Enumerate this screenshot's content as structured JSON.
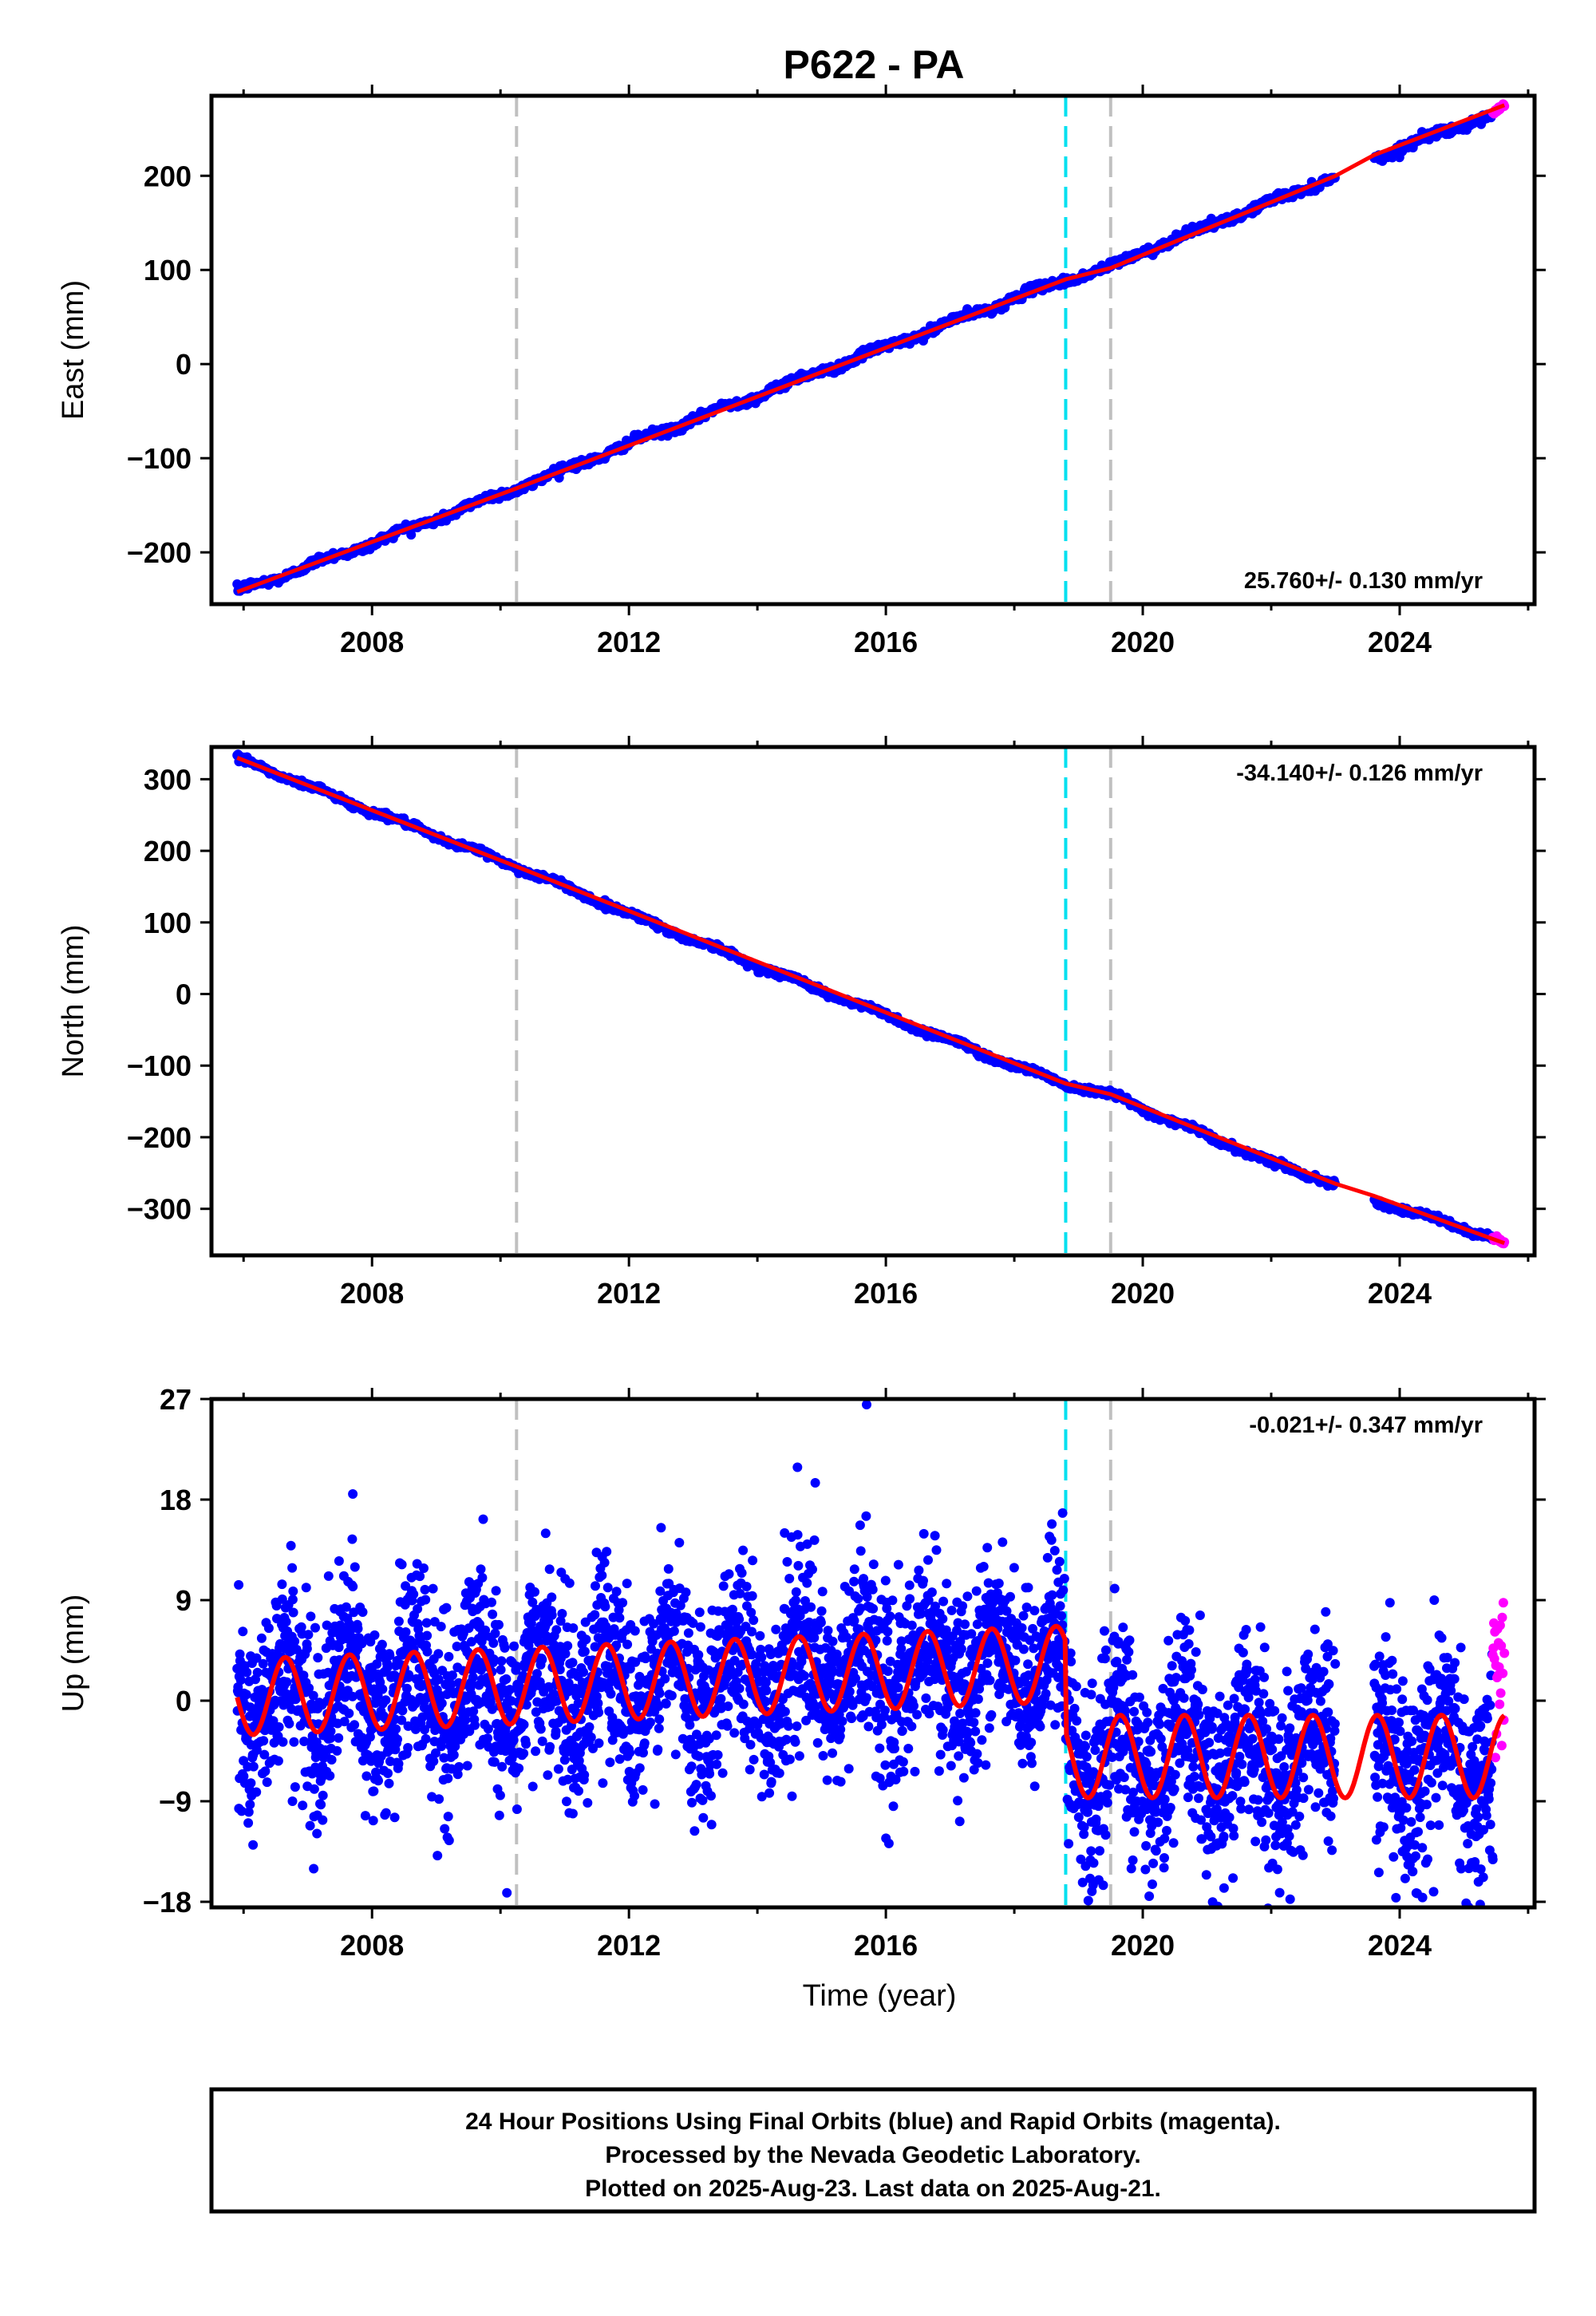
{
  "chart_data": {
    "type": "scatter",
    "title": "P622 - PA",
    "xlabel": "Time (year)",
    "xlim": [
      2005.5,
      2026.1
    ],
    "x_ticks": [
      2008,
      2012,
      2016,
      2020,
      2024
    ],
    "x_tick_labels": [
      "2008",
      "2012",
      "2016",
      "2020",
      "2024"
    ],
    "grid": false,
    "data_start": 2005.9,
    "data_end": 2025.63,
    "rapid_start": 2025.45,
    "gray_event_lines": [
      2010.25,
      2019.5
    ],
    "cyan_event_lines": [
      2018.8
    ],
    "legend": "none",
    "series_legend": [
      {
        "name": "Final Orbits",
        "color": "#0000ff"
      },
      {
        "name": "Rapid Orbits",
        "color": "#ff00ff"
      },
      {
        "name": "Model fit",
        "color": "#ff0000"
      }
    ],
    "panels": [
      {
        "name": "east",
        "ylabel": "East (mm)",
        "ylim": [
          -255,
          285
        ],
        "y_ticks": [
          -200,
          -100,
          0,
          100,
          200
        ],
        "y_tick_labels": [
          "−200",
          "−100",
          "0",
          "100",
          "200"
        ],
        "rate_label": "25.760+/- 0.130 mm/yr",
        "rate_position": "bottom-right",
        "data_gap": [
          2023.0,
          2023.6
        ],
        "series": [
          {
            "name": "Final Orbits",
            "x": [
              2005.9,
              2008.0,
              2010.25,
              2012.0,
              2014.0,
              2016.0,
              2018.0,
              2018.8,
              2019.5,
              2020.0,
              2022.0,
              2023.0,
              2024.0,
              2025.45
            ],
            "y": [
              -242,
              -190,
              -132,
              -85,
              -33,
              18,
              70,
              90,
              102,
              120,
              172,
              200,
              230,
              265
            ]
          },
          {
            "name": "Rapid Orbits",
            "x": [
              2025.45,
              2025.63
            ],
            "y": [
              265,
              275
            ]
          },
          {
            "name": "Model fit",
            "x": [
              2005.9,
              2010.25,
              2018.8,
              2019.5,
              2023.0,
              2023.6,
              2025.63
            ],
            "y": [
              -242,
              -132,
              90,
              102,
              200,
              222,
              275
            ]
          }
        ]
      },
      {
        "name": "north",
        "ylabel": "North (mm)",
        "ylim": [
          -365,
          345
        ],
        "y_ticks": [
          -300,
          -200,
          -100,
          0,
          100,
          200,
          300
        ],
        "y_tick_labels": [
          "−300",
          "−200",
          "−100",
          "0",
          "100",
          "200",
          "300"
        ],
        "rate_label": "-34.140+/- 0.126 mm/yr",
        "rate_position": "top-right",
        "data_gap": [
          2023.0,
          2023.6
        ],
        "series": [
          {
            "name": "Final Orbits",
            "x": [
              2005.9,
              2008.0,
              2010.25,
              2012.0,
              2014.0,
              2016.0,
              2018.0,
              2018.8,
              2019.5,
              2020.0,
              2022.0,
              2023.0,
              2024.0,
              2025.45
            ],
            "y": [
              330,
              255,
              178,
              112,
              40,
              -30,
              -100,
              -125,
              -140,
              -160,
              -235,
              -265,
              -300,
              -340
            ]
          },
          {
            "name": "Rapid Orbits",
            "x": [
              2025.45,
              2025.63
            ],
            "y": [
              -340,
              -348
            ]
          },
          {
            "name": "Model fit",
            "x": [
              2005.9,
              2010.25,
              2018.8,
              2019.5,
              2023.0,
              2023.6,
              2025.63
            ],
            "y": [
              330,
              178,
              -125,
              -140,
              -265,
              -282,
              -348
            ]
          }
        ]
      },
      {
        "name": "up",
        "ylabel": "Up (mm)",
        "ylim": [
          -18.5,
          27
        ],
        "y_ticks": [
          -18,
          -9,
          0,
          9,
          18,
          27
        ],
        "y_tick_labels": [
          "−18",
          "−9",
          "0",
          "9",
          "18",
          "27"
        ],
        "rate_label": "-0.021+/- 0.347 mm/yr",
        "rate_position": "top-right",
        "data_gap": [
          2023.0,
          2023.6
        ],
        "seasonal_cycle": {
          "period_years": 1.0,
          "segments": [
            {
              "from": 2005.9,
              "to": 2018.8,
              "center_start": 0.3,
              "center_end": 3.3,
              "amplitude": 3.4
            },
            {
              "from": 2018.8,
              "to": 2025.63,
              "center_start": -5.0,
              "center_end": -5.0,
              "amplitude": 3.7
            }
          ],
          "scatter_spread_mm": 4.2
        },
        "outliers": [
          {
            "x": 2015.7,
            "y": 26.5
          },
          {
            "x": 2007.7,
            "y": 18.5
          },
          {
            "x": 2014.9,
            "y": 19.5
          },
          {
            "x": 2020.1,
            "y": -17.5
          },
          {
            "x": 2010.1,
            "y": -17.2
          }
        ],
        "series": [
          {
            "name": "Final Orbits",
            "x": [
              2005.9,
              2010.0,
              2014.0,
              2018.8,
              2019.0,
              2022.0,
              2025.45
            ],
            "y": [
              0.3,
              1.2,
              2.2,
              3.3,
              -5.0,
              -5.0,
              -5.0
            ]
          },
          {
            "name": "Rapid Orbits",
            "x": [
              2025.45,
              2025.63
            ],
            "y": [
              2.0,
              3.0
            ]
          },
          {
            "name": "Model fit",
            "x": [
              2005.9,
              2018.8,
              2018.8,
              2025.63
            ],
            "y": [
              0.3,
              3.3,
              -5.0,
              -5.0
            ]
          }
        ]
      }
    ],
    "footer": [
      "24 Hour Positions Using Final Orbits (blue) and Rapid Orbits (magenta).",
      "Processed by the Nevada Geodetic Laboratory.",
      "Plotted on 2025-Aug-23. Last data on 2025-Aug-21."
    ]
  }
}
